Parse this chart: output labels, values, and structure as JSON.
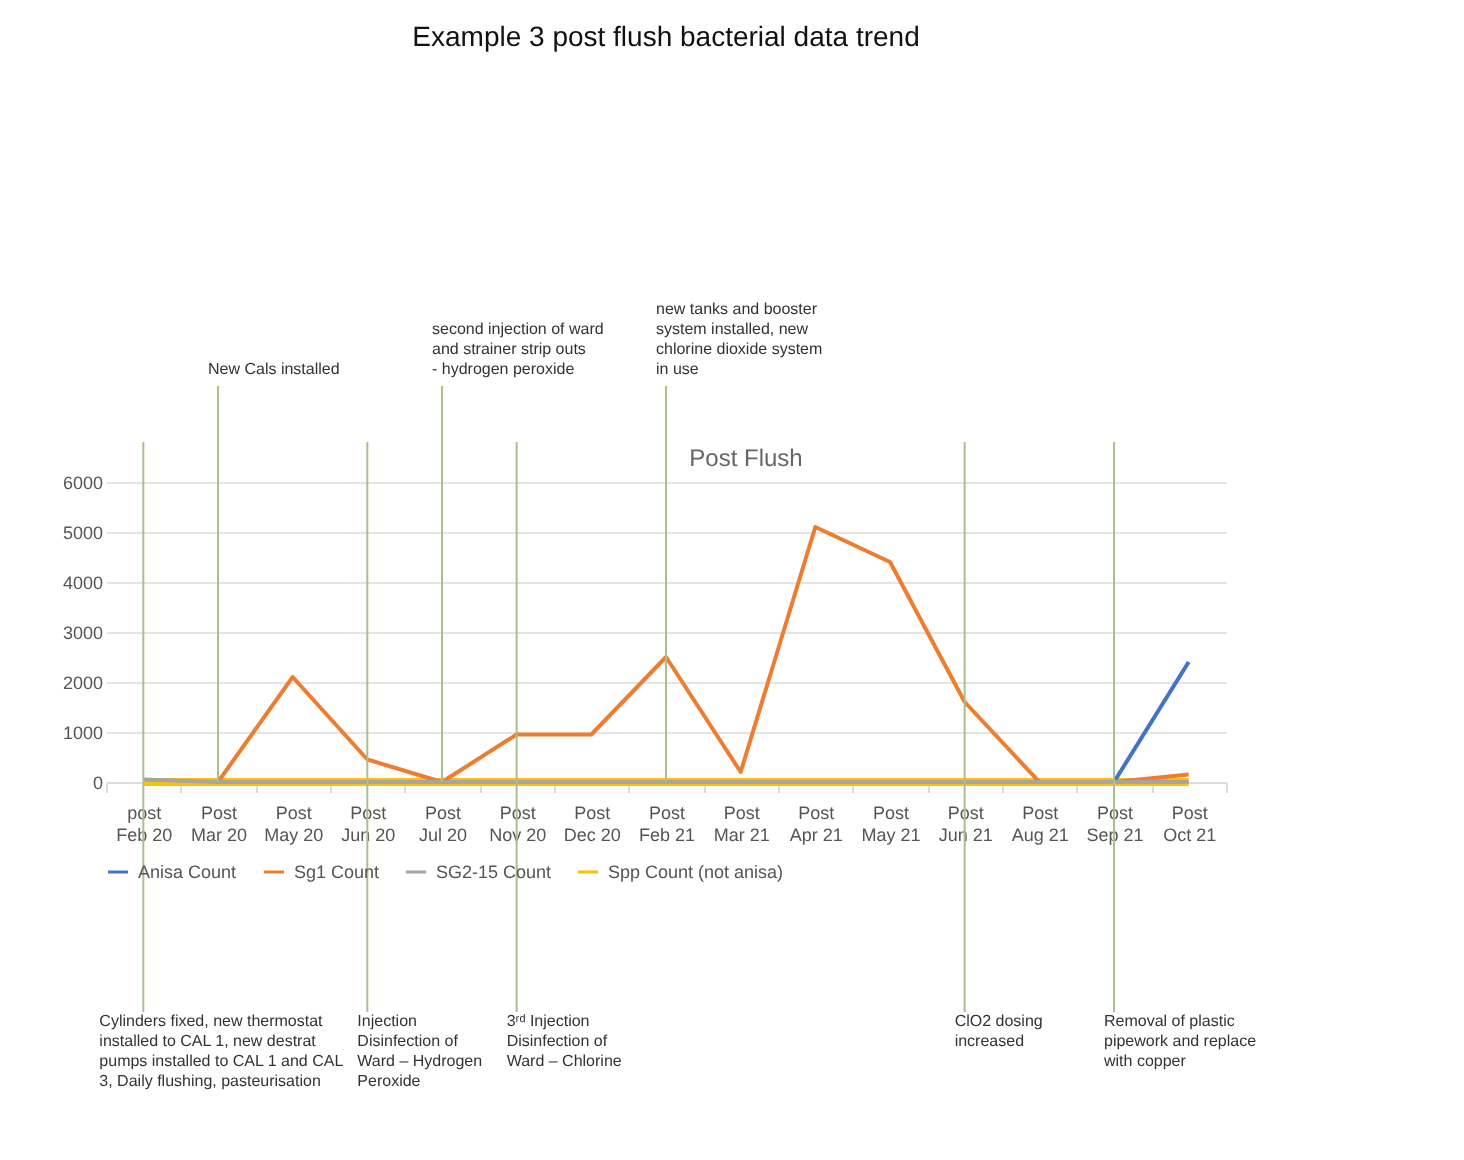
{
  "chart_data": {
    "type": "line",
    "title": "Example 3 post flush bacterial data trend",
    "subtitle": "Post Flush",
    "categories": [
      "post Feb 20",
      "Post Mar 20",
      "Post May 20",
      "Post Jun 20",
      "Post Jul 20",
      "Post Nov 20",
      "Post Dec 20",
      "Post Feb 21",
      "Post Mar 21",
      "Post Apr 21",
      "Post May 21",
      "Post Jun 21",
      "Post Aug 21",
      "Post Sep 21",
      "Post Oct 21"
    ],
    "series": [
      {
        "name": "Anisa Count",
        "color": "#4472c4",
        "values": [
          null,
          null,
          null,
          null,
          null,
          null,
          null,
          null,
          null,
          null,
          null,
          null,
          null,
          0,
          2400
        ]
      },
      {
        "name": "Sg1 Count",
        "color": "#ed7d31",
        "values": [
          null,
          0,
          2100,
          450,
          0,
          950,
          950,
          2500,
          200,
          5100,
          4400,
          1600,
          0,
          0,
          150
        ]
      },
      {
        "name": "SG2-15 Count",
        "color": "#a5a5a5",
        "values": [
          50,
          0,
          0,
          0,
          0,
          0,
          0,
          0,
          0,
          0,
          0,
          0,
          0,
          0,
          0
        ]
      },
      {
        "name": "Spp Count (not anisa)",
        "color": "#ffc000",
        "values": [
          0,
          0,
          0,
          0,
          0,
          0,
          0,
          0,
          0,
          0,
          0,
          0,
          0,
          0,
          0
        ]
      }
    ],
    "ylim": [
      0,
      6000
    ],
    "yticks": [
      0,
      1000,
      2000,
      3000,
      4000,
      5000,
      6000
    ],
    "grid": "y",
    "legend": "bottom",
    "line_style": "solid",
    "ref_lines": [
      {
        "axis": "x",
        "value": "post Feb 20",
        "label": "Cylinders fixed, new thermostat installed to CAL 1, new destrat pumps installed to CAL 1 and CAL 3, Daily flushing, pasteurisation",
        "color": "#a9c08a"
      },
      {
        "axis": "x",
        "value": "Post Mar 20",
        "label": "New Cals installed",
        "color": "#a9c08a"
      },
      {
        "axis": "x",
        "value": "Post Jun 20",
        "label": "Injection Disinfection of Ward – Hydrogen Peroxide",
        "color": "#a9c08a"
      },
      {
        "axis": "x",
        "value": "Post Jul 20",
        "label": "second injection of ward and strainer strip outs - hydrogen peroxide",
        "color": "#a9c08a"
      },
      {
        "axis": "x",
        "value": "Post Nov 20",
        "label": "3ʳᵈ Injection Disinfection of Ward – Chlorine",
        "color": "#a9c08a"
      },
      {
        "axis": "x",
        "value": "Post Feb 21",
        "label": "new tanks and booster system installed, new chlorine dioxide system in use",
        "color": "#a9c08a"
      },
      {
        "axis": "x",
        "value": "Post Jun 21",
        "label": "ClO2 dosing increased",
        "color": "#a9c08a"
      },
      {
        "axis": "x",
        "value": "Post Sep 21",
        "label": "Removal of plastic pipework and replace with copper",
        "color": "#a9c08a"
      }
    ]
  }
}
